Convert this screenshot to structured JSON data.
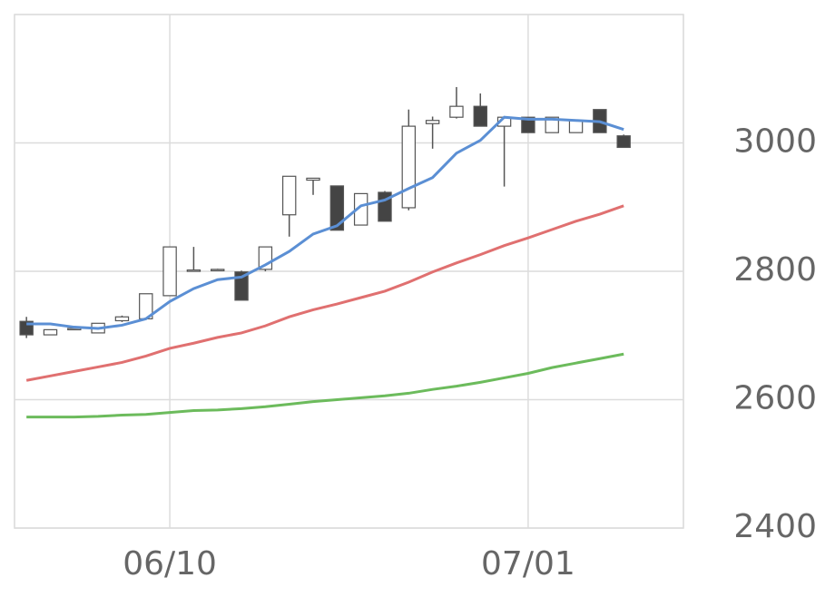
{
  "chart_data": {
    "type": "candlestick",
    "categories": [
      null,
      null,
      null,
      null,
      null,
      null,
      "06/10",
      null,
      null,
      null,
      null,
      null,
      null,
      null,
      null,
      null,
      null,
      null,
      null,
      null,
      null,
      "07/01",
      null,
      null,
      null,
      null,
      null,
      null
    ],
    "open": [
      2722,
      2701,
      2710,
      2704,
      2723,
      2726,
      2762,
      2800,
      2802,
      2799,
      2803,
      2888,
      2942,
      2933,
      2872,
      2923,
      2899,
      3030,
      3040,
      3057,
      3026,
      3040,
      3016,
      3016,
      3052,
      3011,
      null,
      null
    ],
    "high": [
      2729,
      2709,
      2711,
      2719,
      2731,
      2765,
      2838,
      2838,
      2804,
      2801,
      2838,
      2948,
      2945,
      2933,
      2921,
      2925,
      3052,
      3041,
      3087,
      3077,
      3041,
      3040,
      3040,
      3035,
      3052,
      3013,
      null,
      null
    ],
    "low": [
      2696,
      2701,
      2709,
      2704,
      2721,
      2726,
      2762,
      2800,
      2802,
      2755,
      2800,
      2854,
      2919,
      2864,
      2872,
      2878,
      2895,
      2991,
      3038,
      3026,
      2932,
      3016,
      3016,
      3016,
      3016,
      2993,
      null,
      null
    ],
    "close": [
      2701,
      2709,
      2711,
      2719,
      2729,
      2765,
      2838,
      2802,
      2803,
      2755,
      2838,
      2948,
      2945,
      2864,
      2921,
      2878,
      3026,
      3035,
      3057,
      3026,
      3040,
      3016,
      3040,
      3035,
      3016,
      2993,
      null,
      null
    ],
    "up_color": "#ffffff",
    "down_color": "#444444",
    "candle_edge": "#555555",
    "series": [
      {
        "color": "#5b8fd4",
        "values": [
          2718,
          2718,
          2713,
          2711,
          2716,
          2726,
          2753,
          2773,
          2787,
          2791,
          2810,
          2831,
          2858,
          2871,
          2902,
          2911,
          2929,
          2946,
          2984,
          3004,
          3040,
          3037,
          3037,
          3035,
          3033,
          3021,
          null,
          null
        ]
      },
      {
        "color": "#e07070",
        "values": [
          2630,
          2637,
          2644,
          2651,
          2658,
          2668,
          2680,
          2688,
          2697,
          2704,
          2715,
          2729,
          2740,
          2749,
          2759,
          2769,
          2783,
          2799,
          2813,
          2826,
          2840,
          2852,
          2865,
          2878,
          2889,
          2902,
          null,
          null
        ]
      },
      {
        "color": "#6cbb5c",
        "values": [
          2573,
          2573,
          2573,
          2574,
          2576,
          2577,
          2580,
          2583,
          2584,
          2586,
          2589,
          2593,
          2597,
          2600,
          2603,
          2606,
          2610,
          2616,
          2621,
          2627,
          2634,
          2641,
          2650,
          2657,
          2664,
          2671,
          null,
          null
        ]
      }
    ],
    "ylim": [
      2400,
      3200
    ],
    "yticks": [
      2400,
      2600,
      2800,
      3000
    ],
    "grid": true
  }
}
